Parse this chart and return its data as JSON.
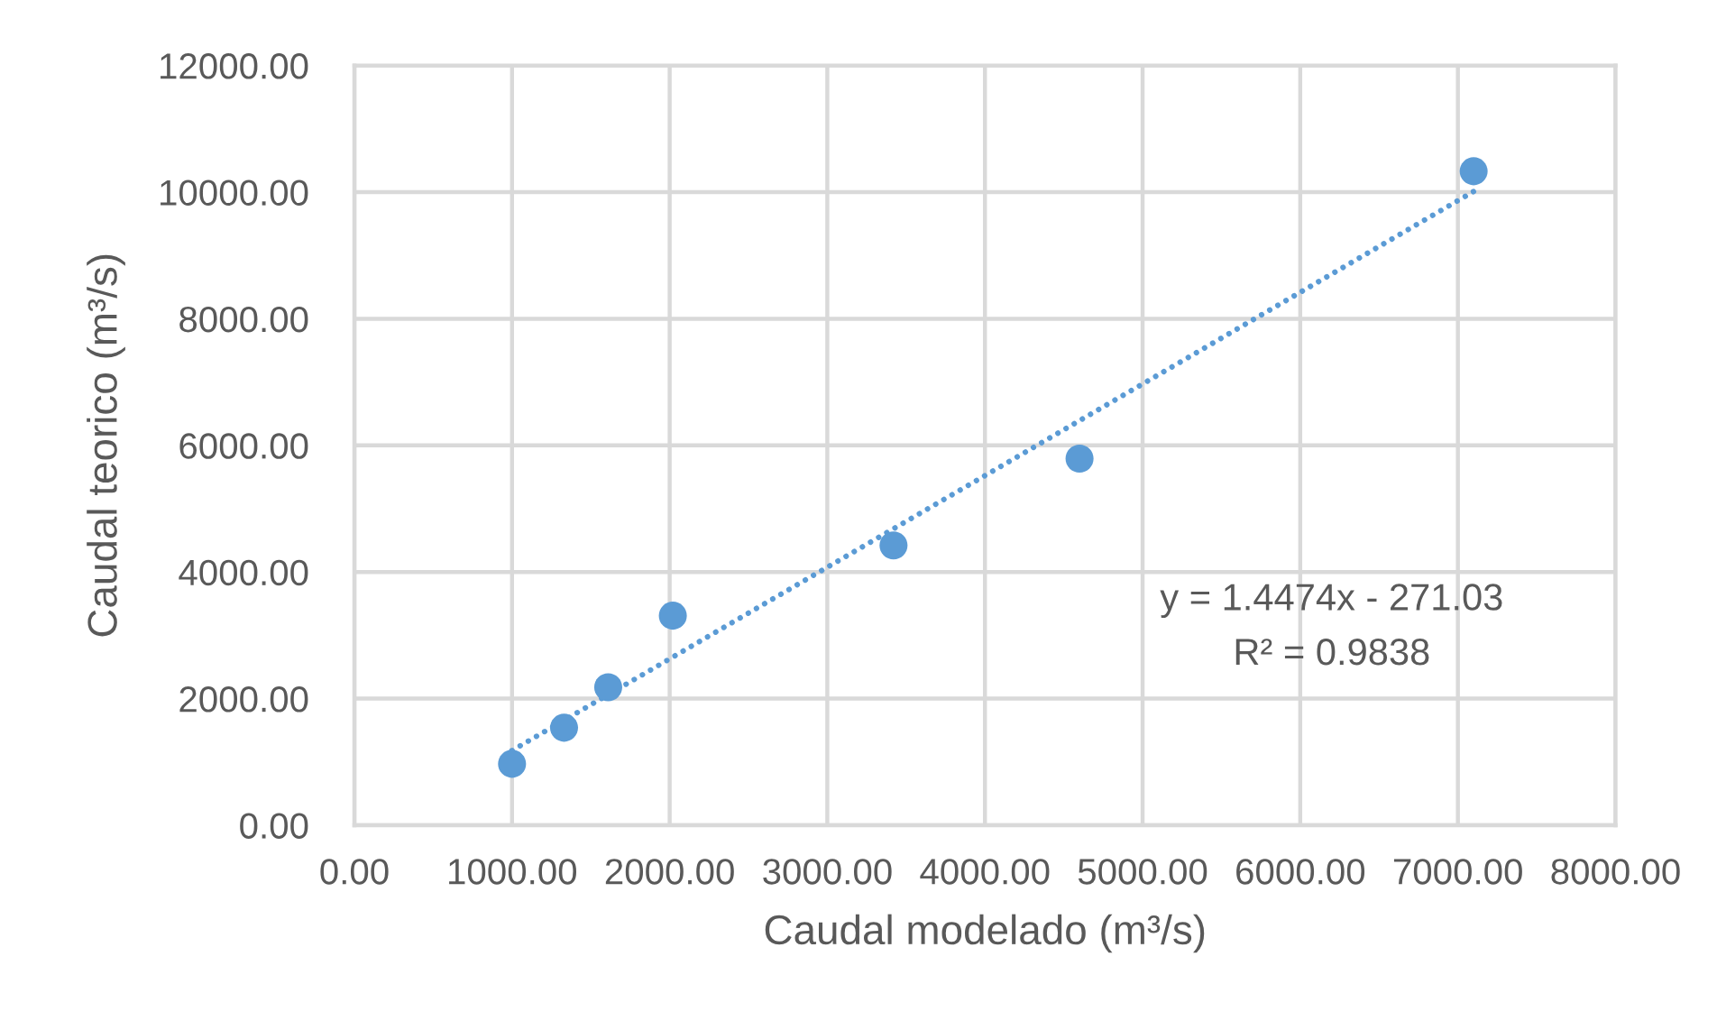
{
  "chart_data": {
    "type": "scatter",
    "xlabel": "Caudal modelado (m³/s)",
    "ylabel": "Caudal teorico (m³/s)",
    "x": [
      1000,
      1330,
      1610,
      2020,
      3420,
      4600,
      7100
    ],
    "series": [
      {
        "color": "#5b9bd5",
        "values": [
          970,
          1540,
          2180,
          3310,
          4420,
          5790,
          10330
        ],
        "marker": "circle"
      },
      {
        "type": "line",
        "color": "#5b9bd5",
        "x": [
          1000,
          7100
        ],
        "values": [
          1180,
          10010
        ],
        "line_style": "dotted"
      }
    ],
    "xlim": [
      0,
      8000
    ],
    "xticks": [
      {
        "value": 0,
        "label": "0.00"
      },
      {
        "value": 1000,
        "label": "1000.00"
      },
      {
        "value": 2000,
        "label": "2000.00"
      },
      {
        "value": 3000,
        "label": "3000.00"
      },
      {
        "value": 4000,
        "label": "4000.00"
      },
      {
        "value": 5000,
        "label": "5000.00"
      },
      {
        "value": 6000,
        "label": "6000.00"
      },
      {
        "value": 7000,
        "label": "7000.00"
      },
      {
        "value": 8000,
        "label": "8000.00"
      }
    ],
    "ylim": [
      0,
      12000
    ],
    "yticks": [
      {
        "value": 0,
        "label": "0.00"
      },
      {
        "value": 2000,
        "label": "2000.00"
      },
      {
        "value": 4000,
        "label": "4000.00"
      },
      {
        "value": 6000,
        "label": "6000.00"
      },
      {
        "value": 8000,
        "label": "8000.00"
      },
      {
        "value": 10000,
        "label": "10000.00"
      },
      {
        "value": 12000,
        "label": "12000.00"
      }
    ],
    "grid": true,
    "annotations": [
      "y = 1.4474x - 271.03",
      "R² = 0.9838"
    ]
  }
}
